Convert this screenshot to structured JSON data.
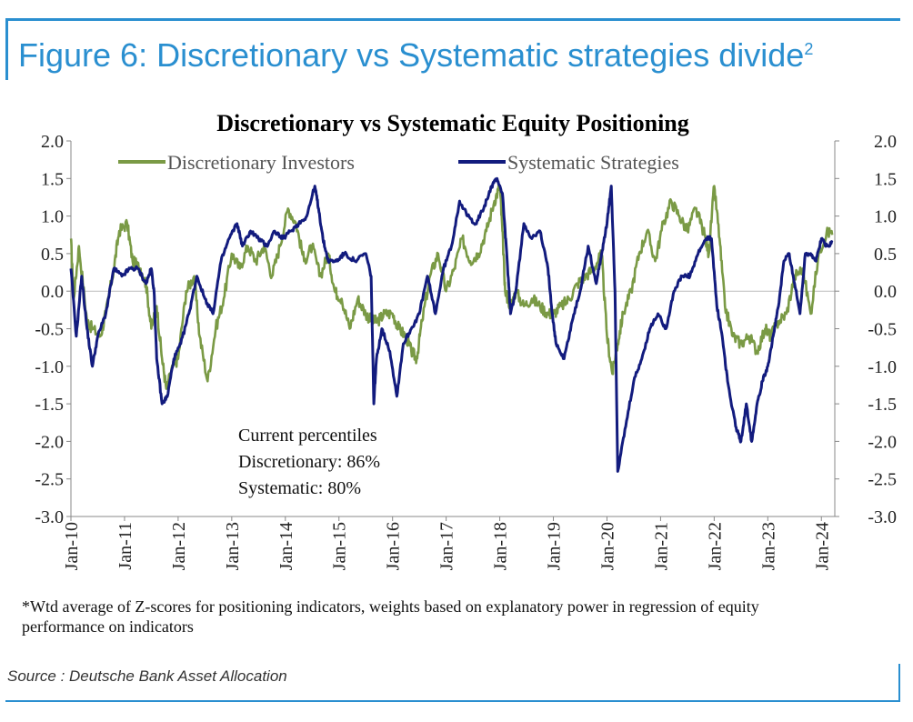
{
  "figure": {
    "title": "Figure 6: Discretionary vs Systematic strategies divide",
    "title_sup": "2",
    "footnote": "*Wtd average of Z-scores for positioning indicators, weights based on explanatory power in regression of equity performance on indicators",
    "source": "Source : Deutsche Bank Asset Allocation"
  },
  "chart_data": {
    "type": "line",
    "title": "Discretionary  vs Systematic Equity Positioning",
    "xlabel": "",
    "ylabel": "",
    "ylim": [
      -3.0,
      2.0
    ],
    "xlim": [
      2010.0,
      2024.25
    ],
    "y_ticks": [
      "2.0",
      "1.5",
      "1.0",
      "0.5",
      "0.0",
      "-0.5",
      "-1.0",
      "-1.5",
      "-2.0",
      "-2.5",
      "-3.0"
    ],
    "x_tick_labels": [
      "Jan-10",
      "Jan-11",
      "Jan-12",
      "Jan-13",
      "Jan-14",
      "Jan-15",
      "Jan-16",
      "Jan-17",
      "Jan-18",
      "Jan-19",
      "Jan-20",
      "Jan-21",
      "Jan-22",
      "Jan-23",
      "Jan-24"
    ],
    "legend_position": "top",
    "colors": {
      "discretionary": "#7a9a45",
      "systematic": "#121b7e"
    },
    "series": [
      {
        "name": "Discretionary Investors",
        "x": [
          2010.0,
          2010.05,
          2010.15,
          2010.3,
          2010.4,
          2010.55,
          2010.65,
          2010.8,
          2010.9,
          2011.05,
          2011.15,
          2011.3,
          2011.4,
          2011.5,
          2011.6,
          2011.7,
          2011.78,
          2011.9,
          2012.0,
          2012.15,
          2012.3,
          2012.4,
          2012.55,
          2012.7,
          2012.85,
          2013.0,
          2013.15,
          2013.3,
          2013.45,
          2013.6,
          2013.75,
          2013.9,
          2014.05,
          2014.2,
          2014.35,
          2014.5,
          2014.65,
          2014.8,
          2014.92,
          2015.05,
          2015.2,
          2015.35,
          2015.5,
          2015.62,
          2015.72,
          2015.85,
          2016.0,
          2016.12,
          2016.25,
          2016.35,
          2016.45,
          2016.55,
          2016.7,
          2016.85,
          2017.0,
          2017.15,
          2017.3,
          2017.45,
          2017.6,
          2017.75,
          2017.9,
          2018.0,
          2018.05,
          2018.1,
          2018.2,
          2018.3,
          2018.45,
          2018.6,
          2018.75,
          2018.9,
          2019.0,
          2019.15,
          2019.3,
          2019.45,
          2019.6,
          2019.75,
          2019.9,
          2020.0,
          2020.1,
          2020.2,
          2020.3,
          2020.45,
          2020.6,
          2020.75,
          2020.9,
          2021.05,
          2021.2,
          2021.35,
          2021.5,
          2021.65,
          2021.8,
          2021.9,
          2022.0,
          2022.1,
          2022.2,
          2022.35,
          2022.5,
          2022.65,
          2022.8,
          2022.95,
          2023.05,
          2023.2,
          2023.35,
          2023.5,
          2023.65,
          2023.8,
          2023.95,
          2024.1,
          2024.2
        ],
        "values": [
          0.7,
          -0.1,
          0.6,
          -0.4,
          -0.5,
          -0.6,
          -0.3,
          0.3,
          0.8,
          0.9,
          0.4,
          0.3,
          0.1,
          -0.5,
          -0.2,
          -0.9,
          -1.3,
          -1.0,
          -0.9,
          0.0,
          0.2,
          -0.6,
          -1.2,
          -0.5,
          -0.1,
          0.5,
          0.3,
          0.6,
          0.4,
          0.6,
          0.2,
          0.6,
          1.1,
          0.9,
          0.4,
          0.6,
          0.2,
          0.5,
          0.0,
          -0.1,
          -0.5,
          -0.1,
          -0.3,
          -0.4,
          -0.4,
          -0.3,
          -0.3,
          -0.5,
          -0.6,
          -0.8,
          -0.9,
          -0.4,
          0.2,
          0.5,
          0.0,
          0.3,
          0.7,
          0.4,
          0.5,
          0.8,
          1.2,
          1.4,
          0.8,
          0.0,
          -0.2,
          0.0,
          -0.2,
          -0.1,
          -0.2,
          -0.3,
          -0.3,
          -0.2,
          -0.1,
          0.1,
          0.2,
          0.3,
          0.5,
          -0.6,
          -1.1,
          -0.7,
          -0.3,
          0.0,
          0.5,
          0.8,
          0.4,
          0.9,
          1.2,
          1.0,
          0.8,
          1.1,
          0.8,
          0.5,
          1.4,
          0.7,
          -0.2,
          -0.6,
          -0.7,
          -0.6,
          -0.8,
          -0.5,
          -0.6,
          -0.4,
          -0.3,
          0.2,
          0.3,
          -0.3,
          0.5,
          0.8,
          0.75
        ]
      },
      {
        "name": "Systematic Strategies",
        "x": [
          2010.0,
          2010.1,
          2010.2,
          2010.3,
          2010.4,
          2010.5,
          2010.65,
          2010.8,
          2010.95,
          2011.1,
          2011.25,
          2011.4,
          2011.5,
          2011.55,
          2011.6,
          2011.7,
          2011.8,
          2011.92,
          2012.05,
          2012.2,
          2012.35,
          2012.5,
          2012.65,
          2012.8,
          2012.95,
          2013.1,
          2013.2,
          2013.35,
          2013.5,
          2013.65,
          2013.8,
          2013.95,
          2014.1,
          2014.25,
          2014.4,
          2014.55,
          2014.62,
          2014.7,
          2014.8,
          2014.95,
          2015.1,
          2015.3,
          2015.5,
          2015.6,
          2015.65,
          2015.7,
          2015.8,
          2015.95,
          2016.08,
          2016.2,
          2016.35,
          2016.5,
          2016.65,
          2016.8,
          2016.95,
          2017.1,
          2017.25,
          2017.4,
          2017.55,
          2017.7,
          2017.85,
          2017.95,
          2018.05,
          2018.12,
          2018.2,
          2018.3,
          2018.45,
          2018.6,
          2018.75,
          2018.9,
          2018.98,
          2019.05,
          2019.2,
          2019.35,
          2019.5,
          2019.65,
          2019.8,
          2019.9,
          2020.0,
          2020.08,
          2020.15,
          2020.2,
          2020.35,
          2020.5,
          2020.65,
          2020.8,
          2020.95,
          2021.1,
          2021.25,
          2021.4,
          2021.55,
          2021.7,
          2021.85,
          2021.95,
          2022.05,
          2022.15,
          2022.25,
          2022.4,
          2022.5,
          2022.6,
          2022.7,
          2022.8,
          2022.9,
          2023.0,
          2023.1,
          2023.2,
          2023.3,
          2023.4,
          2023.5,
          2023.6,
          2023.7,
          2023.8,
          2023.9,
          2024.0,
          2024.1,
          2024.2
        ],
        "values": [
          0.3,
          -0.6,
          0.2,
          -0.5,
          -1.0,
          -0.6,
          -0.3,
          0.3,
          0.2,
          0.3,
          0.3,
          0.1,
          0.3,
          0.0,
          -0.9,
          -1.5,
          -1.4,
          -0.9,
          -0.7,
          -0.3,
          0.2,
          -0.1,
          -0.3,
          0.4,
          0.7,
          0.9,
          0.6,
          0.8,
          0.7,
          0.6,
          0.8,
          0.7,
          0.8,
          0.9,
          1.0,
          1.4,
          1.1,
          0.7,
          0.4,
          0.4,
          0.5,
          0.4,
          0.5,
          0.2,
          -1.5,
          -0.9,
          -0.5,
          -0.8,
          -1.4,
          -0.7,
          -0.5,
          -0.3,
          0.2,
          -0.3,
          0.3,
          0.6,
          1.2,
          1.0,
          0.9,
          1.1,
          1.4,
          1.5,
          1.3,
          0.6,
          -0.3,
          0.0,
          0.9,
          0.7,
          0.8,
          0.3,
          -0.3,
          -0.7,
          -0.9,
          -0.4,
          0.0,
          0.6,
          0.1,
          0.5,
          0.9,
          1.4,
          0.0,
          -2.4,
          -1.8,
          -1.2,
          -0.9,
          -0.5,
          -0.3,
          -0.5,
          0.0,
          0.2,
          0.2,
          0.5,
          0.7,
          0.7,
          -0.2,
          -0.6,
          -1.2,
          -1.8,
          -2.0,
          -1.5,
          -2.0,
          -1.5,
          -1.2,
          -1.0,
          -0.6,
          -0.2,
          0.4,
          0.5,
          0.1,
          -0.3,
          0.5,
          0.5,
          0.4,
          0.7,
          0.6,
          0.65
        ]
      }
    ],
    "annotation": {
      "heading": "Current percentiles",
      "line1": "Discretionary: 86%",
      "line2": "Systematic: 80%"
    }
  }
}
